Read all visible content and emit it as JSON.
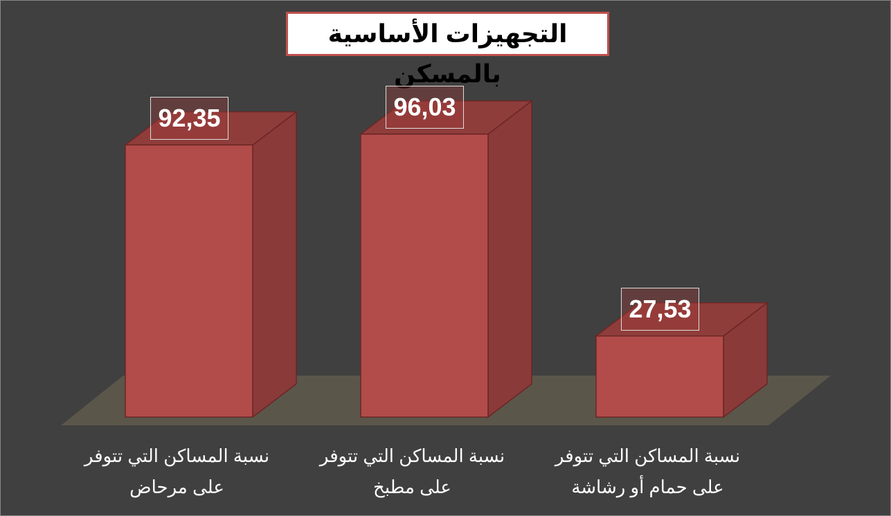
{
  "chart_data": {
    "type": "bar3d",
    "title": "التجهيزات الأساسية بالمسكن",
    "categories": [
      "نسبة المساكن التي تتوفر على مرحاض",
      "نسبة المساكن التي تتوفر على مطبخ",
      "نسبة المساكن التي تتوفر على حمام أو رشاشة"
    ],
    "values": [
      92.35,
      96.03,
      27.53
    ],
    "value_labels": [
      "92,35",
      "96,03",
      "27,53"
    ],
    "color": "#b24c4a"
  }
}
